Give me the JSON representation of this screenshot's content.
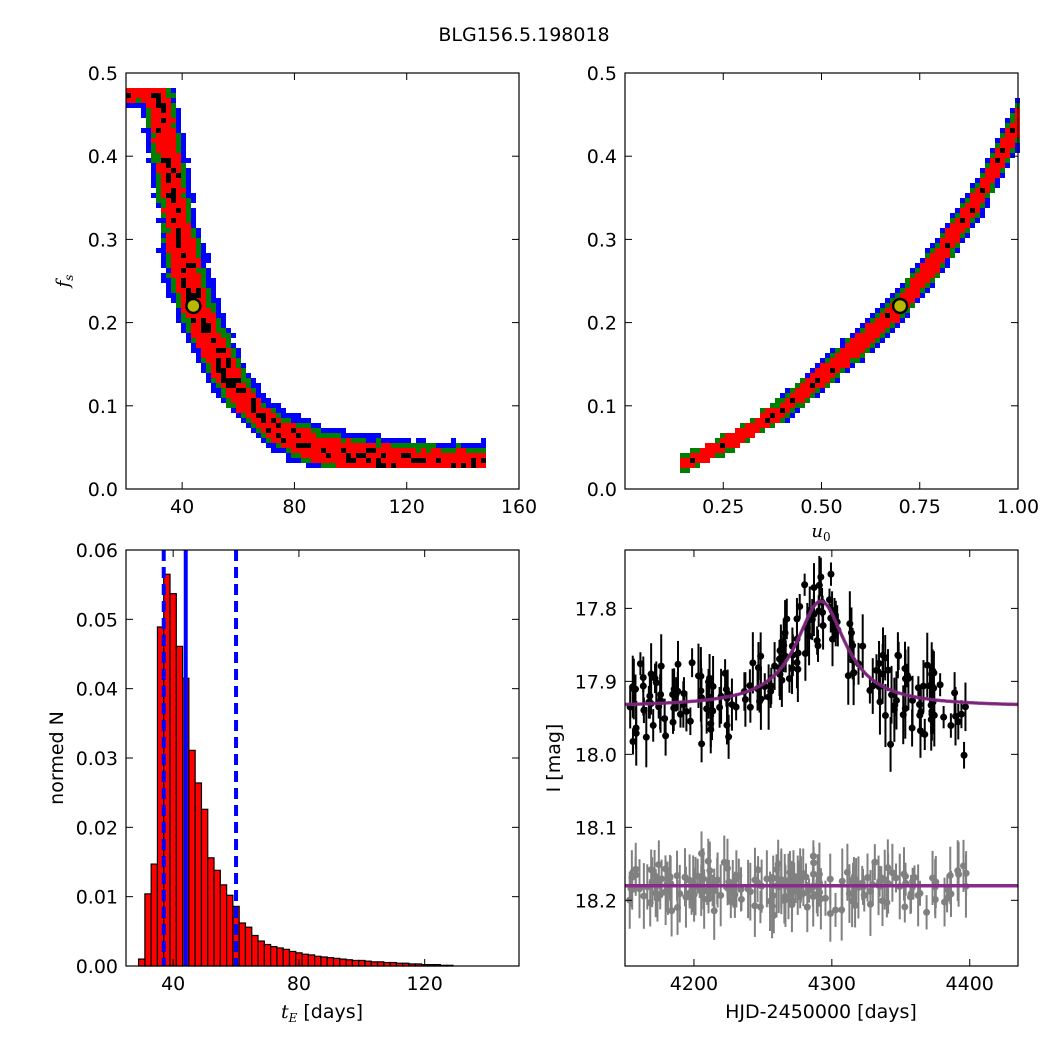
{
  "figure": {
    "title": "BLG156.5.198018"
  },
  "chart_data": [
    {
      "type": "heatmap",
      "panel": "top-left",
      "xlabel": "",
      "ylabel": "f_s",
      "xlim": [
        20,
        160
      ],
      "ylim": [
        0,
        0.5
      ],
      "xticks": [
        40,
        80,
        120,
        160
      ],
      "yticks": [
        0.0,
        0.1,
        0.2,
        0.3,
        0.4,
        0.5
      ],
      "confidence_levels": [
        {
          "level": "outer",
          "color": "#0000ff"
        },
        {
          "level": "middle",
          "color": "#008000"
        },
        {
          "level": "inner",
          "color": "#ff0000"
        },
        {
          "level": "core",
          "color": "#000000"
        }
      ],
      "ridge": [
        [
          31,
          0.48
        ],
        [
          33,
          0.44
        ],
        [
          35,
          0.4
        ],
        [
          37,
          0.35
        ],
        [
          39,
          0.31
        ],
        [
          41,
          0.27
        ],
        [
          43,
          0.24
        ],
        [
          46,
          0.21
        ],
        [
          50,
          0.18
        ],
        [
          55,
          0.145
        ],
        [
          60,
          0.115
        ],
        [
          65,
          0.095
        ],
        [
          72,
          0.075
        ],
        [
          80,
          0.06
        ],
        [
          90,
          0.048
        ],
        [
          100,
          0.04
        ],
        [
          115,
          0.034
        ],
        [
          130,
          0.03
        ],
        [
          148,
          0.028
        ]
      ],
      "best_fit": {
        "x": 44,
        "y": 0.22
      }
    },
    {
      "type": "heatmap",
      "panel": "top-right",
      "xlabel": "u_0",
      "ylabel": "",
      "xlim": [
        0.0,
        1.0
      ],
      "ylim": [
        0,
        0.5
      ],
      "xticks": [
        0.25,
        0.5,
        0.75,
        1.0
      ],
      "xticklabels": [
        "0.25",
        "0.50",
        "0.75",
        "1.00"
      ],
      "yticks": [
        0.0,
        0.1,
        0.2,
        0.3,
        0.4,
        0.5
      ],
      "ridge": [
        [
          0.15,
          0.03
        ],
        [
          0.22,
          0.045
        ],
        [
          0.3,
          0.065
        ],
        [
          0.4,
          0.095
        ],
        [
          0.5,
          0.135
        ],
        [
          0.6,
          0.175
        ],
        [
          0.7,
          0.22
        ],
        [
          0.8,
          0.28
        ],
        [
          0.9,
          0.35
        ],
        [
          1.0,
          0.44
        ]
      ],
      "best_fit": {
        "x": 0.7,
        "y": 0.22
      }
    },
    {
      "type": "bar",
      "panel": "bottom-left",
      "xlabel": "t_E [days]",
      "ylabel": "normed N",
      "xlim": [
        25,
        150
      ],
      "ylim": [
        0,
        0.06
      ],
      "xticks": [
        40,
        80,
        120
      ],
      "yticks": [
        0.0,
        0.01,
        0.02,
        0.03,
        0.04,
        0.05,
        0.06
      ],
      "bin_start": 29,
      "bin_width": 2,
      "values": [
        0.001,
        0.0104,
        0.0147,
        0.0489,
        0.0565,
        0.0537,
        0.0461,
        0.0415,
        0.0311,
        0.0264,
        0.0226,
        0.0156,
        0.0138,
        0.0117,
        0.0102,
        0.0086,
        0.0062,
        0.0056,
        0.0044,
        0.0036,
        0.0031,
        0.0028,
        0.0026,
        0.0024,
        0.0021,
        0.0019,
        0.0017,
        0.0016,
        0.0014,
        0.0013,
        0.0012,
        0.0011,
        0.001,
        0.0009,
        0.0008,
        0.0008,
        0.0007,
        0.0006,
        0.0006,
        0.0005,
        0.0005,
        0.0004,
        0.0004,
        0.0003,
        0.0003,
        0.0002,
        0.0002,
        0.0002,
        0.0001,
        0.0001
      ],
      "bar_color": "#ff0000",
      "vlines": [
        {
          "x": 44,
          "style": "solid",
          "color": "#0000ff"
        },
        {
          "x": 37,
          "style": "dashed",
          "color": "#0000ff"
        },
        {
          "x": 60,
          "style": "dashed",
          "color": "#0000ff"
        }
      ]
    },
    {
      "type": "scatter",
      "panel": "bottom-right",
      "xlabel": "HJD-2450000 [days]",
      "ylabel": "I [mag]",
      "xlim": [
        4150,
        4435
      ],
      "ylim": [
        18.29,
        17.72
      ],
      "inverted_y": true,
      "xticks": [
        4200,
        4300,
        4400
      ],
      "yticks": [
        17.8,
        17.9,
        18.0,
        18.1,
        18.2
      ],
      "series": [
        {
          "color": "#000000",
          "model": {
            "t0": 4292,
            "tau": 22,
            "base": 17.935,
            "peak": 17.79
          },
          "x_range": [
            4152,
            4398
          ],
          "n_points": 190,
          "scatter": 0.04
        },
        {
          "color": "#808080",
          "model": {
            "level": 18.18
          },
          "x_range": [
            4152,
            4398
          ],
          "n_points": 190,
          "scatter": 0.025
        }
      ],
      "model_color": "#8b2a8b"
    }
  ]
}
